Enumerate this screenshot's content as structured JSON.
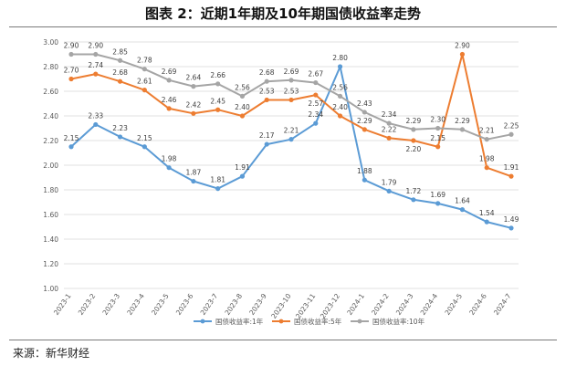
{
  "header": {
    "title": "图表 2：近期1年期及10年期国债收益率走势"
  },
  "footer": {
    "source": "来源：新华财经"
  },
  "colors": {
    "s1": "#5b9bd5",
    "s5": "#ed7d31",
    "s10": "#a5a5a5",
    "grid": "#d9d9d9"
  },
  "chart_data": {
    "type": "line",
    "title": "",
    "xlabel": "",
    "ylabel": "",
    "ylim": [
      1.0,
      3.0
    ],
    "yticks": [
      "1.00",
      "1.20",
      "1.40",
      "1.60",
      "1.80",
      "2.00",
      "2.20",
      "2.40",
      "2.60",
      "2.80",
      "3.00"
    ],
    "grid": true,
    "legend": "bottom",
    "categories": [
      "2023-1",
      "2023-2",
      "2023-3",
      "2023-4",
      "2023-5",
      "2023-6",
      "2023-7",
      "2023-8",
      "2023-9",
      "2023-10",
      "2023-11",
      "2023-12",
      "2024-1",
      "2024-2",
      "2024-3",
      "2024-4",
      "2024-5",
      "2024-6",
      "2024-7"
    ],
    "series": [
      {
        "name": "国债收益率:1年",
        "values": [
          2.15,
          2.33,
          2.23,
          2.15,
          1.98,
          1.87,
          1.81,
          1.91,
          2.17,
          2.21,
          2.34,
          2.8,
          1.88,
          1.79,
          1.72,
          1.69,
          1.64,
          1.54,
          1.49
        ]
      },
      {
        "name": "国债收益率:5年",
        "values": [
          2.7,
          2.74,
          2.68,
          2.61,
          2.46,
          2.42,
          2.45,
          2.4,
          2.53,
          2.53,
          2.57,
          2.4,
          2.29,
          2.22,
          2.2,
          2.15,
          2.9,
          1.98,
          1.91
        ]
      },
      {
        "name": "国债收益率:10年",
        "values": [
          2.9,
          2.9,
          2.85,
          2.78,
          2.69,
          2.64,
          2.66,
          2.56,
          2.68,
          2.69,
          2.67,
          2.56,
          2.43,
          2.34,
          2.29,
          2.3,
          2.29,
          2.21,
          2.25
        ]
      }
    ]
  }
}
